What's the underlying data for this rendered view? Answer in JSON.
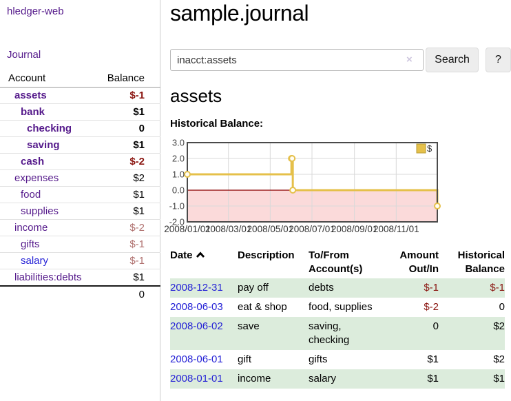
{
  "colors": {
    "link_purple": "#551A8B",
    "link_blue": "#2522D6",
    "neg_strong": "#8A1510",
    "neg_faded": "#B0716F",
    "row_green": "#DCECDC",
    "chart_line": "#E5C04A",
    "chart_line_border": "#B89B33",
    "chart_negative_bg": "#FBDADA",
    "chart_zero_line": "#8B0000",
    "chart_grid": "#D9D9D9",
    "chart_border": "#4A4A4A"
  },
  "sidebar": {
    "brand": "hledger-web",
    "journal_link": "Journal",
    "header": {
      "account": "Account",
      "balance": "Balance"
    },
    "accounts": [
      {
        "name": "assets",
        "depth": 1,
        "bold": true,
        "balance": "$-1",
        "neg": "strong"
      },
      {
        "name": "bank",
        "depth": 2,
        "bold": true,
        "balance": "$1",
        "neg": "none"
      },
      {
        "name": "checking",
        "depth": 3,
        "bold": true,
        "balance": "0",
        "neg": "none"
      },
      {
        "name": "saving",
        "depth": 3,
        "bold": true,
        "balance": "$1",
        "neg": "none"
      },
      {
        "name": "cash",
        "depth": 2,
        "bold": true,
        "balance": "$-2",
        "neg": "strong"
      },
      {
        "name": "expenses",
        "depth": 1,
        "bold": false,
        "balance": "$2",
        "neg": "none"
      },
      {
        "name": "food",
        "depth": 2,
        "bold": false,
        "balance": "$1",
        "neg": "none"
      },
      {
        "name": "supplies",
        "depth": 2,
        "bold": false,
        "balance": "$1",
        "neg": "none"
      },
      {
        "name": "income",
        "depth": 1,
        "bold": false,
        "balance": "$-2",
        "neg": "faded"
      },
      {
        "name": "gifts",
        "depth": 2,
        "bold": false,
        "balance": "$-1",
        "neg": "faded"
      },
      {
        "name": "salary",
        "depth": 2,
        "bold": false,
        "balance": "$-1",
        "neg": "faded",
        "link_color": "blue"
      },
      {
        "name": "liabilities:debts",
        "depth": 1,
        "bold": false,
        "balance": "$1",
        "neg": "none"
      }
    ],
    "total": "0"
  },
  "main": {
    "title": "sample.journal",
    "search": {
      "value": "inacct:assets",
      "clear_icon": "×",
      "search_button": "Search",
      "help_button": "?"
    },
    "account_heading": "assets",
    "chart_heading": "Historical Balance:"
  },
  "chart_data": {
    "type": "line",
    "subtype": "step",
    "title": "Historical Balance:",
    "xlabel": "",
    "ylabel": "",
    "xlim": [
      "2008-01-01",
      "2008-12-31"
    ],
    "ylim": [
      -2,
      3
    ],
    "grid": true,
    "legend_position": "top-right",
    "y_ticks": [
      {
        "v": 3,
        "label": "3.0"
      },
      {
        "v": 2,
        "label": "2.0"
      },
      {
        "v": 1,
        "label": "1.0"
      },
      {
        "v": 0,
        "label": "0.0"
      },
      {
        "v": -1,
        "label": "-1.0"
      },
      {
        "v": -2,
        "label": "-2.0"
      }
    ],
    "x_ticks": [
      {
        "d": "2008-01-01",
        "label": "2008/01/01"
      },
      {
        "d": "2008-03-01",
        "label": "2008/03/01"
      },
      {
        "d": "2008-05-01",
        "label": "2008/05/01"
      },
      {
        "d": "2008-07-01",
        "label": "2008/07/01"
      },
      {
        "d": "2008-09-01",
        "label": "2008/09/01"
      },
      {
        "d": "2008-11-01",
        "label": "2008/11/01"
      }
    ],
    "series": [
      {
        "name": "$",
        "points": [
          {
            "d": "2008-01-01",
            "v": 1
          },
          {
            "d": "2008-06-01",
            "v": 2
          },
          {
            "d": "2008-06-02",
            "v": 2
          },
          {
            "d": "2008-06-03",
            "v": 0
          },
          {
            "d": "2008-12-31",
            "v": -1
          }
        ]
      }
    ]
  },
  "register_table": {
    "columns": [
      "Date",
      "Description",
      "To/From Account(s)",
      "Amount Out/In",
      "Historical Balance"
    ],
    "sort_column": "Date",
    "sort_direction": "ascending",
    "rows": [
      {
        "date": "2008-12-31",
        "description": "pay off",
        "accounts": "debts",
        "amount": "$-1",
        "amount_neg": true,
        "balance": "$-1",
        "balance_neg": true
      },
      {
        "date": "2008-06-03",
        "description": "eat & shop",
        "accounts": "food, supplies",
        "amount": "$-2",
        "amount_neg": true,
        "balance": "0",
        "balance_neg": false
      },
      {
        "date": "2008-06-02",
        "description": "save",
        "accounts": "saving, checking",
        "amount": "0",
        "amount_neg": false,
        "balance": "$2",
        "balance_neg": false
      },
      {
        "date": "2008-06-01",
        "description": "gift",
        "accounts": "gifts",
        "amount": "$1",
        "amount_neg": false,
        "balance": "$2",
        "balance_neg": false
      },
      {
        "date": "2008-01-01",
        "description": "income",
        "accounts": "salary",
        "amount": "$1",
        "amount_neg": false,
        "balance": "$1",
        "balance_neg": false
      }
    ]
  }
}
